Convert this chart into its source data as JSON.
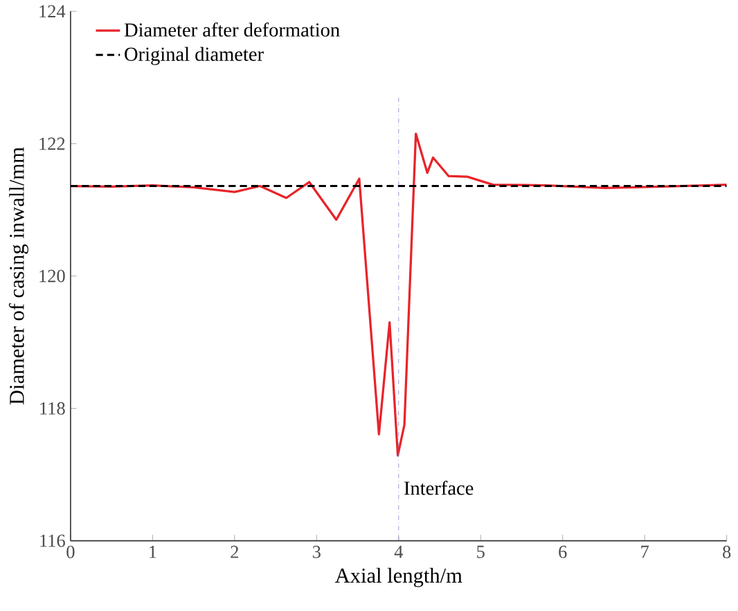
{
  "chart_data": {
    "type": "line",
    "xlabel": "Axial length/m",
    "ylabel": "Diameter of casing inwall/mm",
    "xlim": [
      0,
      8
    ],
    "ylim": [
      116,
      124
    ],
    "xticks": [
      0,
      1,
      2,
      3,
      4,
      5,
      6,
      7,
      8
    ],
    "yticks": [
      116,
      118,
      120,
      122,
      124
    ],
    "legend": "top left",
    "grid": false,
    "marker": "none",
    "series": [
      {
        "name": "Diameter after deformation",
        "color": "#e8242a",
        "line_style": "solid",
        "x": [
          0,
          0.5,
          1.0,
          1.5,
          2.0,
          2.31,
          2.63,
          2.91,
          3.24,
          3.52,
          3.76,
          3.89,
          3.99,
          4.07,
          4.21,
          4.35,
          4.42,
          4.61,
          4.84,
          5.15,
          5.8,
          6.52,
          7.2,
          8.0
        ],
        "values": [
          121.36,
          121.35,
          121.37,
          121.34,
          121.27,
          121.36,
          121.18,
          121.42,
          120.85,
          121.47,
          117.61,
          119.3,
          117.29,
          117.75,
          122.15,
          121.56,
          121.79,
          121.51,
          121.5,
          121.38,
          121.37,
          121.33,
          121.35,
          121.38
        ]
      },
      {
        "name": "Original diameter",
        "color": "#000000",
        "line_style": "dashed",
        "x": [
          0,
          8
        ],
        "values": [
          121.36,
          121.36
        ]
      }
    ],
    "ref_lines": [
      {
        "axis": "x",
        "value": 4,
        "label": "Interface",
        "color": "#8080c8",
        "line_style": "dashdotted"
      }
    ]
  }
}
